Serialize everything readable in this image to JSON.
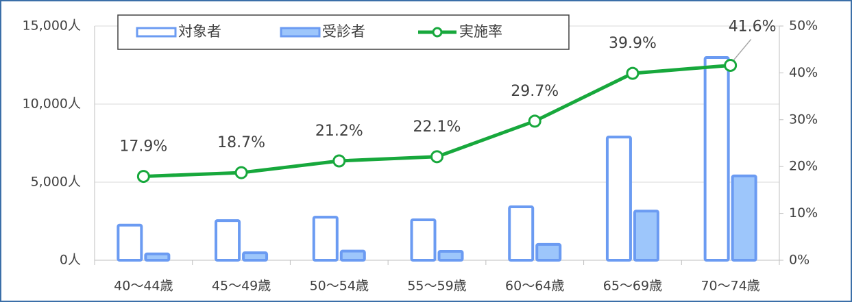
{
  "chart_data": {
    "type": "bar-line",
    "categories": [
      "40～44歳",
      "45～49歳",
      "50～54歳",
      "55～59歳",
      "60～64歳",
      "65～69歳",
      "70～74歳"
    ],
    "series": [
      {
        "name": "対象者",
        "type": "bar",
        "color": "#6b9bf2",
        "fill": "#ffffff",
        "values": [
          2250,
          2540,
          2760,
          2590,
          3420,
          7890,
          12980
        ]
      },
      {
        "name": "受診者",
        "type": "bar",
        "color": "#6b9bf2",
        "fill": "#9dc6fb",
        "values": [
          403,
          475,
          585,
          572,
          1016,
          3148,
          5400
        ]
      },
      {
        "name": "実施率",
        "type": "line",
        "axis": "y2",
        "color": "#17a83c",
        "values": [
          17.9,
          18.7,
          21.2,
          22.1,
          29.7,
          39.9,
          41.6
        ],
        "value_labels": [
          "17.9%",
          "18.7%",
          "21.2%",
          "22.1%",
          "29.7%",
          "39.9%",
          "41.6%"
        ]
      }
    ],
    "ylim": [
      0,
      15000
    ],
    "yticks": [
      {
        "value": 0,
        "label": "0人"
      },
      {
        "value": 5000,
        "label": "5,000人"
      },
      {
        "value": 10000,
        "label": "10,000人"
      },
      {
        "value": 15000,
        "label": "15,000人"
      }
    ],
    "y2lim": [
      0,
      50
    ],
    "y2ticks": [
      {
        "value": 0,
        "label": "0%"
      },
      {
        "value": 10,
        "label": "10%"
      },
      {
        "value": 20,
        "label": "20%"
      },
      {
        "value": 30,
        "label": "30%"
      },
      {
        "value": 40,
        "label": "40%"
      },
      {
        "value": 50,
        "label": "50%"
      }
    ],
    "grid": true,
    "legend": "top"
  }
}
